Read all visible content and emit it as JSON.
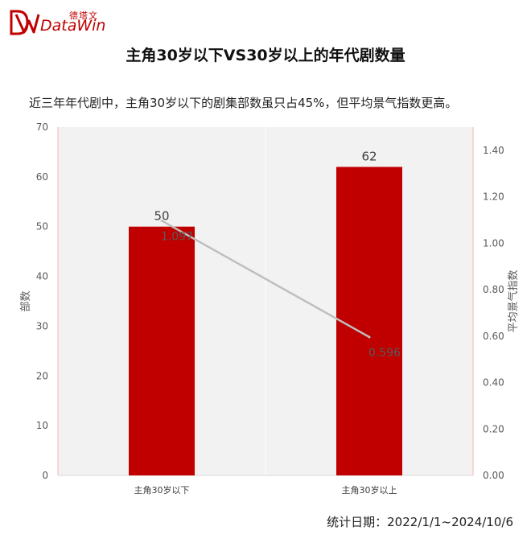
{
  "brand": {
    "name_en": "DataWin",
    "name_cn": "德塔文",
    "color": "#c00000"
  },
  "title": "主角30岁以下VS30岁以上的年代剧数量",
  "subtitle": "近三年年代剧中，主角30岁以下的剧集部数虽只占45%，但平均景气指数更高。",
  "footer": "统计日期：2022/1/1~2024/10/6",
  "chart_data": {
    "type": "bar",
    "categories": [
      "主角30岁以下",
      "主角30岁以上"
    ],
    "series": [
      {
        "name": "部数",
        "type": "bar",
        "axis": "left",
        "values": [
          50,
          62
        ],
        "labels": [
          "50",
          "62"
        ],
        "color": "#c00000"
      },
      {
        "name": "平均景气指数",
        "type": "line",
        "axis": "right",
        "values": [
          1.097,
          0.596
        ],
        "labels": [
          "1.097",
          "0.596"
        ],
        "color": "#bfbfbf"
      }
    ],
    "ylabel": "部数",
    "y2label": "平均景气指数",
    "ylim": [
      0,
      70
    ],
    "y2lim": [
      0,
      1.5
    ],
    "yticks": [
      "0",
      "10",
      "20",
      "30",
      "40",
      "50",
      "60",
      "70"
    ],
    "y2ticks": [
      "0.00",
      "0.20",
      "0.40",
      "0.60",
      "0.80",
      "1.00",
      "1.20",
      "1.40"
    ],
    "grid": true,
    "plot_bg": "#f2f2f2",
    "axis_color": "#f4b6b6"
  }
}
